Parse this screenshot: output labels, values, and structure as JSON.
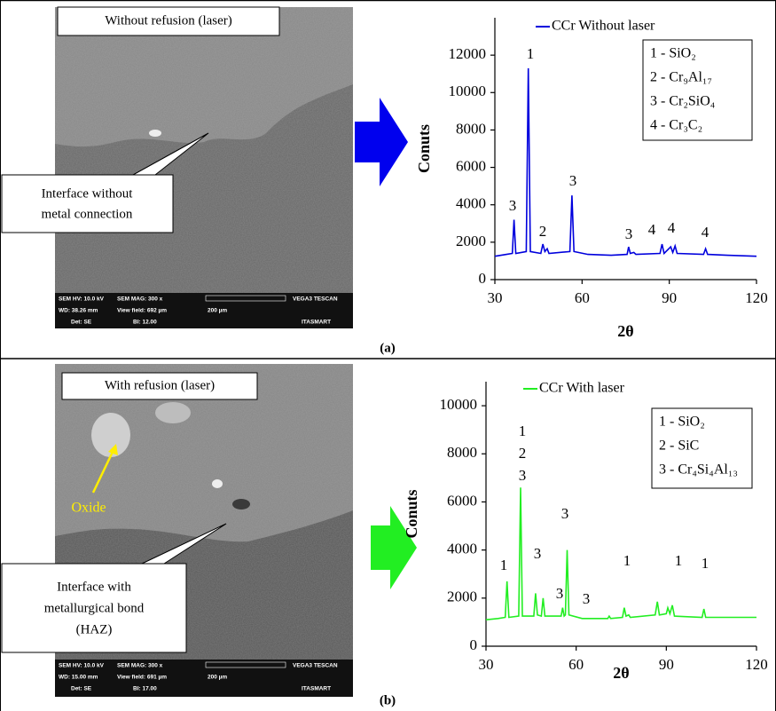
{
  "panels": [
    {
      "caption": "(a)",
      "image_label": "Without refusion (laser)",
      "callout": [
        "Interface without",
        "metal connection"
      ],
      "sem_footer": [
        "SEM HV: 10.0 kV",
        "SEM MAG: 300 x",
        "VEGA3 TESCAN",
        "WD: 38.26 mm",
        "View field: 692 µm",
        "200 µm",
        "Det: SE",
        "BI: 12.00",
        "ITASMART"
      ]
    },
    {
      "caption": "(b)",
      "image_label": "With refusion (laser)",
      "callout": [
        "Interface with",
        "metallurgical bond",
        "(HAZ)"
      ],
      "oxide_label": "Oxide",
      "sem_footer": [
        "SEM HV: 10.0 kV",
        "SEM MAG: 300 x",
        "VEGA3 TESCAN",
        "WD: 15.00 mm",
        "View field: 691 µm",
        "200 µm",
        "Det: SE",
        "BI: 17.00",
        "ITASMART"
      ]
    }
  ],
  "chart_data": [
    {
      "type": "line",
      "x_label": "2θ",
      "y_label": "Conuts",
      "xlim": [
        30,
        120
      ],
      "xticks": [
        30,
        60,
        90,
        120
      ],
      "ylim": [
        0,
        14000
      ],
      "yticks": [
        0,
        2000,
        4000,
        6000,
        8000,
        10000,
        12000
      ],
      "x": [
        30,
        34,
        36,
        36.6,
        37.2,
        40.8,
        41.5,
        42.2,
        45.8,
        46.5,
        47.2,
        48,
        48.6,
        55.8,
        56.5,
        57.2,
        62,
        70,
        75.5,
        76,
        76.6,
        77.8,
        78.5,
        86.8,
        87.5,
        88.2,
        90.5,
        91.2,
        92,
        92.7,
        101.8,
        102.5,
        103.2,
        110,
        120
      ],
      "series": [
        {
          "name": "CCr Without laser",
          "color": "#0000dd",
          "values": [
            1250,
            1350,
            1400,
            3200,
            1400,
            1500,
            11300,
            1500,
            1400,
            1900,
            1500,
            1650,
            1400,
            1500,
            4500,
            1500,
            1350,
            1300,
            1350,
            1750,
            1400,
            1450,
            1350,
            1400,
            1900,
            1400,
            1750,
            1450,
            1800,
            1400,
            1350,
            1650,
            1350,
            1300,
            1250
          ]
        }
      ],
      "peak_labels": [
        "3",
        "1",
        "2",
        "3",
        "3",
        "4",
        "4",
        "4"
      ],
      "phase_legend": [
        "1 - SiO₂",
        "2 - Cr₉Al₁₇",
        "3 - Cr₂SiO₄",
        "4 - Cr₃C₂"
      ]
    },
    {
      "type": "line",
      "x_label": "2θ",
      "y_label": "Conuts",
      "xlim": [
        30,
        120
      ],
      "xticks": [
        30,
        60,
        90,
        120
      ],
      "ylim": [
        0,
        11000
      ],
      "yticks": [
        0,
        2000,
        4000,
        6000,
        8000,
        10000
      ],
      "x": [
        30,
        34,
        36.4,
        37,
        37.6,
        40.9,
        41.5,
        42.1,
        45.9,
        46.5,
        47.1,
        48.4,
        49,
        49.6,
        55,
        55.5,
        56,
        56.4,
        57,
        57.6,
        62,
        70.5,
        71,
        71.5,
        75.4,
        76,
        76.6,
        77.5,
        78,
        86.3,
        87,
        87.7,
        90,
        90.5,
        91.2,
        92,
        92.7,
        101.9,
        102.5,
        103.1,
        110,
        120
      ],
      "series": [
        {
          "name": "CCr With laser",
          "color": "#22ee22",
          "values": [
            1100,
            1150,
            1200,
            2700,
            1200,
            1250,
            6600,
            1250,
            1250,
            2200,
            1300,
            1250,
            2000,
            1250,
            1250,
            1600,
            1250,
            1300,
            4000,
            1300,
            1150,
            1150,
            1250,
            1150,
            1200,
            1600,
            1250,
            1300,
            1200,
            1300,
            1850,
            1300,
            1350,
            1600,
            1350,
            1700,
            1250,
            1200,
            1550,
            1200,
            1200,
            1200
          ]
        }
      ],
      "peak_labels": [
        "1",
        "1",
        "2",
        "3",
        "3",
        "3",
        "3",
        "3",
        "1",
        "1",
        "1"
      ],
      "phase_legend": [
        "1 - SiO₂",
        "2 - SiC",
        "3 - Cr₄Si₄Al₁₃"
      ]
    }
  ]
}
